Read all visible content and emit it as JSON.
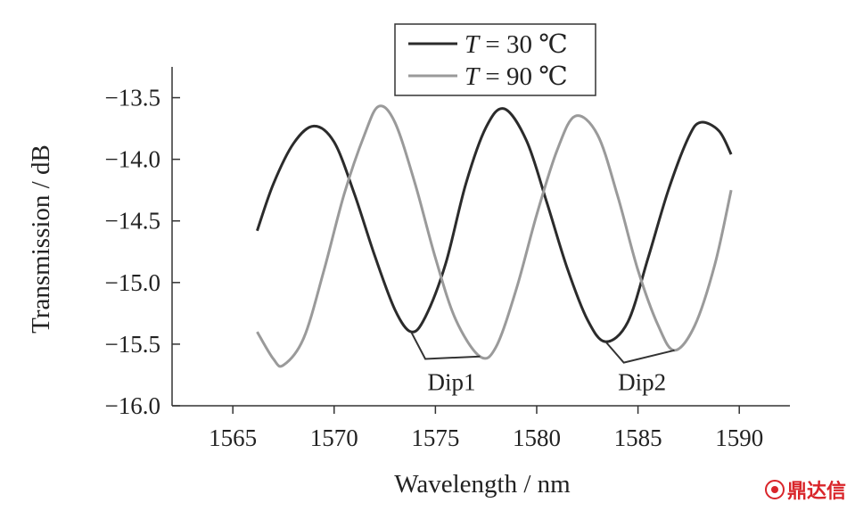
{
  "chart_data": {
    "type": "line",
    "xlabel": "Wavelength / nm",
    "ylabel": "Transmission / dB",
    "xlim": [
      1562.0,
      1592.5
    ],
    "ylim": [
      -16.0,
      -13.25
    ],
    "xticks": [
      1565,
      1570,
      1575,
      1580,
      1585,
      1590
    ],
    "yticks": [
      -16.0,
      -15.5,
      -15.0,
      -14.5,
      -14.0,
      -13.5
    ],
    "ytick_labels": [
      "−16.0",
      "−15.5",
      "−15.0",
      "−14.5",
      "−14.0",
      "−13.5"
    ],
    "grid": false,
    "legend_position": "top-center",
    "series": [
      {
        "name": "T = 30 ℃",
        "legend_var": "T",
        "legend_rest": " = 30 ℃",
        "color": "#2b2b2b",
        "x": [
          1566.2,
          1567.0,
          1568.0,
          1569.0,
          1570.0,
          1571.0,
          1572.0,
          1573.0,
          1573.8,
          1574.5,
          1575.5,
          1576.5,
          1577.5,
          1578.4,
          1579.5,
          1580.5,
          1581.5,
          1582.5,
          1583.4,
          1584.5,
          1585.5,
          1586.5,
          1587.5,
          1588.1,
          1589.0,
          1589.6
        ],
        "y": [
          -14.58,
          -14.2,
          -13.87,
          -13.73,
          -13.86,
          -14.28,
          -14.78,
          -15.22,
          -15.4,
          -15.28,
          -14.85,
          -14.2,
          -13.74,
          -13.59,
          -13.85,
          -14.35,
          -14.88,
          -15.3,
          -15.48,
          -15.32,
          -14.8,
          -14.25,
          -13.82,
          -13.7,
          -13.77,
          -13.96
        ]
      },
      {
        "name": "T = 90 ℃",
        "legend_var": "T",
        "legend_rest": " = 90 ℃",
        "color": "#9a9a9a",
        "x": [
          1566.2,
          1567.0,
          1567.5,
          1568.5,
          1569.5,
          1570.5,
          1571.5,
          1572.2,
          1573.0,
          1574.0,
          1575.0,
          1576.0,
          1577.2,
          1578.0,
          1579.0,
          1580.0,
          1581.0,
          1581.9,
          1583.0,
          1584.0,
          1585.0,
          1586.0,
          1586.8,
          1587.8,
          1588.8,
          1589.6
        ],
        "y": [
          -15.4,
          -15.62,
          -15.67,
          -15.45,
          -14.9,
          -14.28,
          -13.8,
          -13.57,
          -13.7,
          -14.2,
          -14.8,
          -15.3,
          -15.6,
          -15.52,
          -15.05,
          -14.45,
          -13.93,
          -13.65,
          -13.8,
          -14.3,
          -14.9,
          -15.35,
          -15.55,
          -15.35,
          -14.85,
          -14.25
        ]
      }
    ],
    "annotations": [
      {
        "text": "Dip1",
        "x": 1575.8,
        "y": -15.8,
        "points": [
          [
            1573.8,
            -15.4
          ],
          [
            1574.5,
            -15.62
          ],
          [
            1577.2,
            -15.6
          ]
        ]
      },
      {
        "text": "Dip2",
        "x": 1585.2,
        "y": -15.8,
        "points": [
          [
            1583.4,
            -15.48
          ],
          [
            1584.3,
            -15.65
          ],
          [
            1586.8,
            -15.55
          ]
        ]
      }
    ]
  },
  "watermark": {
    "text": "鼎达信"
  }
}
